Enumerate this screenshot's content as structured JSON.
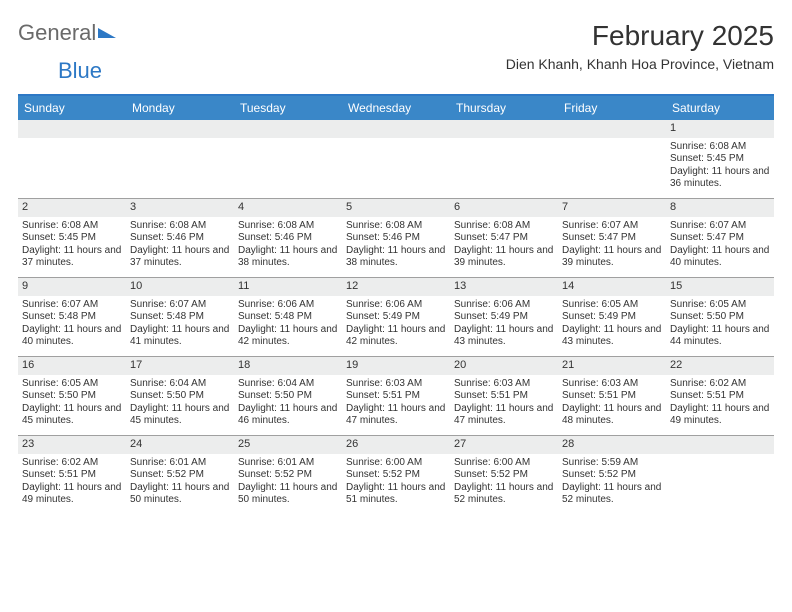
{
  "brand": {
    "part1": "General",
    "part2": "Blue"
  },
  "title": "February 2025",
  "location": "Dien Khanh, Khanh Hoa Province, Vietnam",
  "colors": {
    "header_blue": "#3a87c8",
    "border_blue": "#2d78c5",
    "strip_gray": "#eceded",
    "grid_border": "#a0a0a0",
    "text": "#333333",
    "logo_gray": "#6a6a6a",
    "logo_blue": "#2d78c5",
    "white": "#ffffff"
  },
  "weekdays": [
    "Sunday",
    "Monday",
    "Tuesday",
    "Wednesday",
    "Thursday",
    "Friday",
    "Saturday"
  ],
  "weeks": [
    [
      {
        "empty": true
      },
      {
        "empty": true
      },
      {
        "empty": true
      },
      {
        "empty": true
      },
      {
        "empty": true
      },
      {
        "empty": true
      },
      {
        "day": "1",
        "sunrise": "Sunrise: 6:08 AM",
        "sunset": "Sunset: 5:45 PM",
        "daylight": "Daylight: 11 hours and 36 minutes."
      }
    ],
    [
      {
        "day": "2",
        "sunrise": "Sunrise: 6:08 AM",
        "sunset": "Sunset: 5:45 PM",
        "daylight": "Daylight: 11 hours and 37 minutes."
      },
      {
        "day": "3",
        "sunrise": "Sunrise: 6:08 AM",
        "sunset": "Sunset: 5:46 PM",
        "daylight": "Daylight: 11 hours and 37 minutes."
      },
      {
        "day": "4",
        "sunrise": "Sunrise: 6:08 AM",
        "sunset": "Sunset: 5:46 PM",
        "daylight": "Daylight: 11 hours and 38 minutes."
      },
      {
        "day": "5",
        "sunrise": "Sunrise: 6:08 AM",
        "sunset": "Sunset: 5:46 PM",
        "daylight": "Daylight: 11 hours and 38 minutes."
      },
      {
        "day": "6",
        "sunrise": "Sunrise: 6:08 AM",
        "sunset": "Sunset: 5:47 PM",
        "daylight": "Daylight: 11 hours and 39 minutes."
      },
      {
        "day": "7",
        "sunrise": "Sunrise: 6:07 AM",
        "sunset": "Sunset: 5:47 PM",
        "daylight": "Daylight: 11 hours and 39 minutes."
      },
      {
        "day": "8",
        "sunrise": "Sunrise: 6:07 AM",
        "sunset": "Sunset: 5:47 PM",
        "daylight": "Daylight: 11 hours and 40 minutes."
      }
    ],
    [
      {
        "day": "9",
        "sunrise": "Sunrise: 6:07 AM",
        "sunset": "Sunset: 5:48 PM",
        "daylight": "Daylight: 11 hours and 40 minutes."
      },
      {
        "day": "10",
        "sunrise": "Sunrise: 6:07 AM",
        "sunset": "Sunset: 5:48 PM",
        "daylight": "Daylight: 11 hours and 41 minutes."
      },
      {
        "day": "11",
        "sunrise": "Sunrise: 6:06 AM",
        "sunset": "Sunset: 5:48 PM",
        "daylight": "Daylight: 11 hours and 42 minutes."
      },
      {
        "day": "12",
        "sunrise": "Sunrise: 6:06 AM",
        "sunset": "Sunset: 5:49 PM",
        "daylight": "Daylight: 11 hours and 42 minutes."
      },
      {
        "day": "13",
        "sunrise": "Sunrise: 6:06 AM",
        "sunset": "Sunset: 5:49 PM",
        "daylight": "Daylight: 11 hours and 43 minutes."
      },
      {
        "day": "14",
        "sunrise": "Sunrise: 6:05 AM",
        "sunset": "Sunset: 5:49 PM",
        "daylight": "Daylight: 11 hours and 43 minutes."
      },
      {
        "day": "15",
        "sunrise": "Sunrise: 6:05 AM",
        "sunset": "Sunset: 5:50 PM",
        "daylight": "Daylight: 11 hours and 44 minutes."
      }
    ],
    [
      {
        "day": "16",
        "sunrise": "Sunrise: 6:05 AM",
        "sunset": "Sunset: 5:50 PM",
        "daylight": "Daylight: 11 hours and 45 minutes."
      },
      {
        "day": "17",
        "sunrise": "Sunrise: 6:04 AM",
        "sunset": "Sunset: 5:50 PM",
        "daylight": "Daylight: 11 hours and 45 minutes."
      },
      {
        "day": "18",
        "sunrise": "Sunrise: 6:04 AM",
        "sunset": "Sunset: 5:50 PM",
        "daylight": "Daylight: 11 hours and 46 minutes."
      },
      {
        "day": "19",
        "sunrise": "Sunrise: 6:03 AM",
        "sunset": "Sunset: 5:51 PM",
        "daylight": "Daylight: 11 hours and 47 minutes."
      },
      {
        "day": "20",
        "sunrise": "Sunrise: 6:03 AM",
        "sunset": "Sunset: 5:51 PM",
        "daylight": "Daylight: 11 hours and 47 minutes."
      },
      {
        "day": "21",
        "sunrise": "Sunrise: 6:03 AM",
        "sunset": "Sunset: 5:51 PM",
        "daylight": "Daylight: 11 hours and 48 minutes."
      },
      {
        "day": "22",
        "sunrise": "Sunrise: 6:02 AM",
        "sunset": "Sunset: 5:51 PM",
        "daylight": "Daylight: 11 hours and 49 minutes."
      }
    ],
    [
      {
        "day": "23",
        "sunrise": "Sunrise: 6:02 AM",
        "sunset": "Sunset: 5:51 PM",
        "daylight": "Daylight: 11 hours and 49 minutes."
      },
      {
        "day": "24",
        "sunrise": "Sunrise: 6:01 AM",
        "sunset": "Sunset: 5:52 PM",
        "daylight": "Daylight: 11 hours and 50 minutes."
      },
      {
        "day": "25",
        "sunrise": "Sunrise: 6:01 AM",
        "sunset": "Sunset: 5:52 PM",
        "daylight": "Daylight: 11 hours and 50 minutes."
      },
      {
        "day": "26",
        "sunrise": "Sunrise: 6:00 AM",
        "sunset": "Sunset: 5:52 PM",
        "daylight": "Daylight: 11 hours and 51 minutes."
      },
      {
        "day": "27",
        "sunrise": "Sunrise: 6:00 AM",
        "sunset": "Sunset: 5:52 PM",
        "daylight": "Daylight: 11 hours and 52 minutes."
      },
      {
        "day": "28",
        "sunrise": "Sunrise: 5:59 AM",
        "sunset": "Sunset: 5:52 PM",
        "daylight": "Daylight: 11 hours and 52 minutes."
      },
      {
        "empty": true
      }
    ]
  ]
}
